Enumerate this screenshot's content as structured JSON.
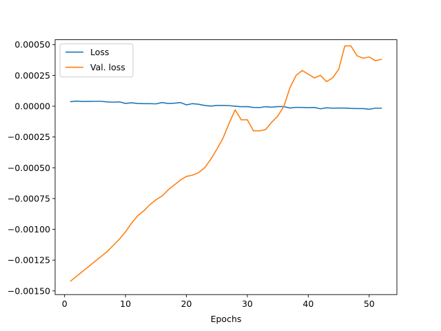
{
  "chart_data": {
    "type": "line",
    "title": "",
    "xlabel": "Epochs",
    "ylabel": "",
    "xlim": [
      -1.55,
      54.55
    ],
    "ylim": [
      -0.00153,
      0.00054
    ],
    "xticks": [
      0,
      10,
      20,
      30,
      40,
      50
    ],
    "xtick_labels": [
      "0",
      "10",
      "20",
      "30",
      "40",
      "50"
    ],
    "yticks": [
      -0.0015,
      -0.00125,
      -0.001,
      -0.00075,
      -0.0005,
      -0.00025,
      0,
      0.00025,
      0.0005
    ],
    "ytick_labels": [
      "−0.00150",
      "−0.00125",
      "−0.00100",
      "−0.00075",
      "−0.00050",
      "−0.00025",
      "0.00000",
      "0.00025",
      "0.00050"
    ],
    "grid": false,
    "legend": {
      "location": "top-left"
    },
    "x": [
      1,
      2,
      3,
      4,
      5,
      6,
      7,
      8,
      9,
      10,
      11,
      12,
      13,
      14,
      15,
      16,
      17,
      18,
      19,
      20,
      21,
      22,
      23,
      24,
      25,
      26,
      27,
      28,
      29,
      30,
      31,
      32,
      33,
      34,
      35,
      36,
      37,
      38,
      39,
      40,
      41,
      42,
      43,
      44,
      45,
      46,
      47,
      48,
      49,
      50,
      51,
      52
    ],
    "series": [
      {
        "name": "Loss",
        "color": "#1f77b4",
        "values": [
          3.7e-05,
          4.2e-05,
          3.8e-05,
          3.9e-05,
          4e-05,
          4e-05,
          3.5e-05,
          3.3e-05,
          3.5e-05,
          2.3e-05,
          2.8e-05,
          2.2e-05,
          2.1e-05,
          2.1e-05,
          1.9e-05,
          3e-05,
          2.2e-05,
          2.4e-05,
          3e-05,
          1.1e-05,
          2.1e-05,
          1.6e-05,
          6e-06,
          1e-06,
          6e-06,
          6e-06,
          5e-06,
          0,
          -4e-06,
          -3e-06,
          -1e-05,
          -1.1e-05,
          -4e-06,
          -8e-06,
          -3e-06,
          -3e-06,
          -1.5e-05,
          -9e-06,
          -1e-05,
          -1.2e-05,
          -1e-05,
          -2.1e-05,
          -1.3e-05,
          -1.6e-05,
          -1.5e-05,
          -1.5e-05,
          -1.8e-05,
          -1.9e-05,
          -1.9e-05,
          -2.5e-05,
          -1.6e-05,
          -1.6e-05
        ]
      },
      {
        "name": "Val. loss",
        "color": "#ff7f0e",
        "values": [
          -0.00142,
          -0.00138,
          -0.00134,
          -0.0013,
          -0.00126,
          -0.00122,
          -0.00118,
          -0.00113,
          -0.00108,
          -0.00102,
          -0.00095,
          -0.00089,
          -0.00085,
          -0.0008,
          -0.00076,
          -0.00073,
          -0.00068,
          -0.00064,
          -0.0006,
          -0.00057,
          -0.00056,
          -0.00054,
          -0.0005,
          -0.00043,
          -0.00035,
          -0.00026,
          -0.00014,
          -3e-05,
          -0.00011,
          -0.00011,
          -0.0002,
          -0.0002,
          -0.00019,
          -0.00013,
          -8e-05,
          0,
          0.00015,
          0.00025,
          0.00029,
          0.00026,
          0.00023,
          0.00025,
          0.0002,
          0.00023,
          0.0003,
          0.00049,
          0.00049,
          0.00041,
          0.00039,
          0.0004,
          0.00037,
          0.00038
        ]
      }
    ]
  }
}
